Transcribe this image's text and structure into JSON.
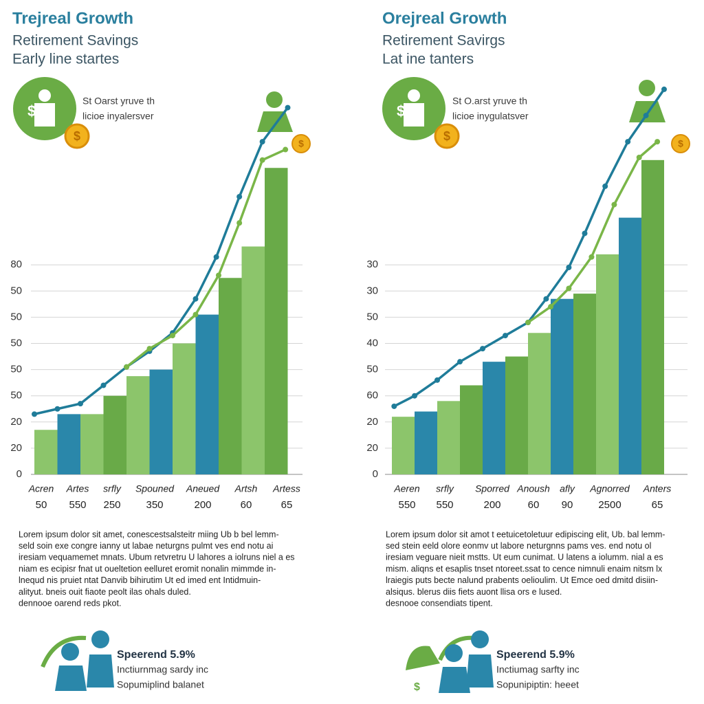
{
  "chart_data": [
    {
      "type": "bar",
      "title": "Trejreal Growth",
      "subtitle": [
        "Retirement Savings",
        "Early line startes"
      ],
      "annotation": [
        "St Oarst yruve th",
        "licioe inyalersver"
      ],
      "ylim": [
        0,
        15
      ],
      "yticks": [
        0,
        {
          "value": 1,
          "label": "20"
        },
        {
          "value": 2,
          "label": "20"
        },
        {
          "value": 3,
          "label": "50"
        },
        {
          "value": 4,
          "label": "50"
        },
        {
          "value": 5,
          "label": "50"
        },
        {
          "value": 6,
          "label": "50"
        },
        {
          "value": 7,
          "label": "50"
        },
        {
          "value": 8,
          "label": "80"
        }
      ],
      "xlim": [
        0,
        11
      ],
      "values": [
        1.7,
        2.3,
        2.3,
        3.0,
        3.75,
        4.0,
        5.0,
        6.1,
        7.5,
        8.7,
        11.7
      ],
      "colors": [
        "#8cc56b",
        "#2a87aa",
        "#8cc56b",
        "#69aa48",
        "#8cc56b",
        "#2a87aa",
        "#8cc56b",
        "#2a87aa",
        "#69aa48",
        "#8cc56b",
        "#69aa48"
      ],
      "lines": [
        {
          "color": "#1f7c99",
          "x": [
            0,
            1,
            2,
            3,
            4,
            5,
            6,
            7,
            7.9,
            8.9,
            9.9,
            11
          ],
          "values": [
            2.3,
            2.5,
            2.7,
            3.4,
            4.1,
            4.7,
            5.4,
            6.7,
            8.3,
            10.6,
            12.7,
            14.0
          ]
        },
        {
          "color": "#7ab648",
          "x": [
            4,
            5,
            6,
            7,
            8,
            8.9,
            9.9,
            10.9
          ],
          "values": [
            4.1,
            4.8,
            5.3,
            6.1,
            7.6,
            9.6,
            12.0,
            12.4
          ]
        }
      ],
      "x_labels": [
        {
          "label": "Acren",
          "value": 50
        },
        {
          "label": "Artes",
          "value": 550
        },
        {
          "label": "srfly",
          "value": 250
        },
        {
          "label": "Spouned",
          "value": 350
        },
        {
          "label": "Aneued",
          "value": 200
        },
        {
          "label": "Artsh",
          "value": 60
        },
        {
          "label": "Artess",
          "value": 65
        }
      ],
      "body": [
        "Lorem ipsum dolor sit amet, conescestsalsteitr miing Ub b bel lemm-",
        "seld soin exe congre ianny ut labae neturgns pulmt ves end notu ai",
        "iresiam vequamemet mnats. Ubum retvretru U lahores a iolruns niel a es",
        "niam es ecipisr fnat ut oueltetion eelluret eromit nonalin mimmde in-",
        "lnequd nis pruiet ntat Danvib bihirutim Ut ed imed ent Intidmuin-",
        "alityut. bneis ouit fiaote peolt ilas ohals duled.",
        "dennooe oarend reds pkot."
      ],
      "callout": {
        "title": "Speerend 5.9%",
        "lines": [
          "Inctiurnmag sardy inc",
          "Sopumiplind balanet"
        ]
      }
    },
    {
      "type": "bar",
      "title": "Orejreal Growth",
      "subtitle": [
        "Retirement Savirgs",
        "Lat ine tanters"
      ],
      "annotation": [
        "St O.arst yruve th",
        "licioe inygulatsver"
      ],
      "ylim": [
        0,
        15
      ],
      "yticks": [
        0,
        {
          "value": 1,
          "label": "20"
        },
        {
          "value": 2,
          "label": "20"
        },
        {
          "value": 3,
          "label": "60"
        },
        {
          "value": 4,
          "label": "50"
        },
        {
          "value": 5,
          "label": "40"
        },
        {
          "value": 6,
          "label": "50"
        },
        {
          "value": 7,
          "label": "30"
        },
        {
          "value": 8,
          "label": "30"
        }
      ],
      "xlim": [
        0,
        12
      ],
      "values": [
        2.2,
        2.4,
        2.8,
        3.4,
        4.3,
        4.5,
        5.4,
        6.7,
        6.9,
        8.4,
        9.8,
        12.0
      ],
      "colors": [
        "#8cc56b",
        "#2a87aa",
        "#8cc56b",
        "#69aa48",
        "#2a87aa",
        "#69aa48",
        "#8cc56b",
        "#2a87aa",
        "#69aa48",
        "#8cc56b",
        "#2a87aa",
        "#69aa48"
      ],
      "lines": [
        {
          "color": "#1f7c99",
          "x": [
            0.1,
            1,
            2,
            3,
            4,
            5,
            6,
            6.8,
            7.8,
            8.5,
            9.4,
            10.4,
            11.2,
            12
          ],
          "values": [
            2.6,
            3.0,
            3.6,
            4.3,
            4.8,
            5.3,
            5.8,
            6.7,
            7.9,
            9.2,
            11.0,
            12.7,
            13.7,
            14.7
          ]
        },
        {
          "color": "#7ab648",
          "x": [
            6,
            7,
            7.8,
            8.8,
            9.8,
            10.9,
            11.7
          ],
          "values": [
            5.8,
            6.4,
            7.1,
            8.3,
            10.3,
            12.1,
            12.7
          ]
        }
      ],
      "x_labels": [
        {
          "label": "Aeren",
          "value": 550
        },
        {
          "label": "srfly",
          "value": 550
        },
        {
          "label": "Sporred",
          "value": 200
        },
        {
          "label": "Anoush",
          "value": 60
        },
        {
          "label": "afly",
          "value": 90
        },
        {
          "label": "Agnorred",
          "value": 2500
        },
        {
          "label": "Anters",
          "value": 65
        }
      ],
      "body": [
        "Lorem ipsum dolor sit amot t eetuicetoletuur edipiscing elit, Ub. bal lemm-",
        "sed stein eeld olore eonmv ut labore neturgnns pams ves. end notu ol",
        "iresiam veguare nieit mstts. Ut eum cunimat. U latens a iolumm. nial a es",
        "mism. aliqns et esaplis tnset ntoreet.ssat to cence nimnuli enaim nitsm lx",
        "lraiegis puts becte nalund prabents oelioulim. Ut Emce oed dmitd disiin-",
        "alsiqus. blerus diis fiets auont llisa ors e lused.",
        "desnooe consendiats tipent."
      ],
      "callout": {
        "title": "Speerend 5.9%",
        "lines": [
          "Inctiumag sarfty inc",
          "Sopunipiptin: heeet"
        ]
      }
    }
  ]
}
